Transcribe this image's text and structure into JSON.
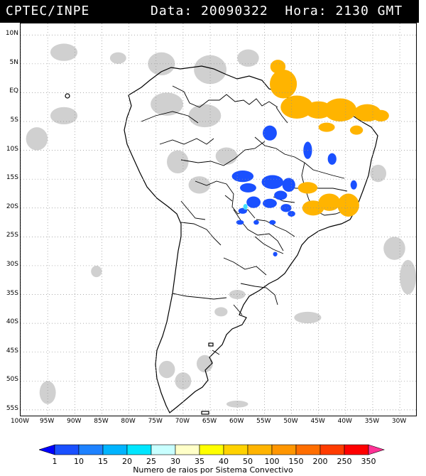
{
  "header": {
    "source": "CPTEC/INPE",
    "date_label": "Data:",
    "date_value": "20090322",
    "time_label": "Hora:",
    "time_value": "2130",
    "tz": "GMT"
  },
  "map": {
    "lat_range": [
      -56,
      12
    ],
    "lon_range": [
      -100,
      -27
    ],
    "lat_ticks": [
      {
        "value": 10,
        "label": "10N"
      },
      {
        "value": 5,
        "label": "5N"
      },
      {
        "value": 0,
        "label": "EQ"
      },
      {
        "value": -5,
        "label": "5S"
      },
      {
        "value": -10,
        "label": "10S"
      },
      {
        "value": -15,
        "label": "15S"
      },
      {
        "value": -20,
        "label": "20S"
      },
      {
        "value": -25,
        "label": "25S"
      },
      {
        "value": -30,
        "label": "30S"
      },
      {
        "value": -35,
        "label": "35S"
      },
      {
        "value": -40,
        "label": "40S"
      },
      {
        "value": -45,
        "label": "45S"
      },
      {
        "value": -50,
        "label": "50S"
      },
      {
        "value": -55,
        "label": "55S"
      }
    ],
    "lon_ticks": [
      {
        "value": -100,
        "label": "100W"
      },
      {
        "value": -95,
        "label": "95W"
      },
      {
        "value": -90,
        "label": "90W"
      },
      {
        "value": -85,
        "label": "85W"
      },
      {
        "value": -80,
        "label": "80W"
      },
      {
        "value": -75,
        "label": "75W"
      },
      {
        "value": -70,
        "label": "70W"
      },
      {
        "value": -65,
        "label": "65W"
      },
      {
        "value": -60,
        "label": "60W"
      },
      {
        "value": -55,
        "label": "55W"
      },
      {
        "value": -50,
        "label": "50W"
      },
      {
        "value": -45,
        "label": "45W"
      },
      {
        "value": -40,
        "label": "40W"
      },
      {
        "value": -35,
        "label": "35W"
      },
      {
        "value": -30,
        "label": "30W"
      }
    ],
    "grid": "dotted",
    "colors": {
      "land_outline": "#000000",
      "cloud": "#c8c8c8",
      "low": "#1a50ff",
      "mid": "#ffb400",
      "cyan": "#40e0ff"
    }
  },
  "convective_systems": [
    {
      "lon": -52.5,
      "lat": 4.5,
      "rx": 1.4,
      "ry": 1.2,
      "color": "#ffb400"
    },
    {
      "lon": -51.5,
      "lat": 1.5,
      "rx": 2.5,
      "ry": 2.5,
      "color": "#ffb400"
    },
    {
      "lon": -49,
      "lat": -2.5,
      "rx": 3,
      "ry": 2,
      "color": "#ffb400"
    },
    {
      "lon": -45,
      "lat": -3,
      "rx": 2.5,
      "ry": 1.5,
      "color": "#ffb400"
    },
    {
      "lon": -41,
      "lat": -3,
      "rx": 3,
      "ry": 2,
      "color": "#ffb400"
    },
    {
      "lon": -36,
      "lat": -3.5,
      "rx": 2.5,
      "ry": 1.5,
      "color": "#ffb400"
    },
    {
      "lon": -33.5,
      "lat": -4,
      "rx": 1.5,
      "ry": 1,
      "color": "#ffb400"
    },
    {
      "lon": -38,
      "lat": -6.5,
      "rx": 1.2,
      "ry": 0.8,
      "color": "#ffb400"
    },
    {
      "lon": -43.5,
      "lat": -6,
      "rx": 1.5,
      "ry": 0.8,
      "color": "#ffb400"
    },
    {
      "lon": -47,
      "lat": -16.5,
      "rx": 1.8,
      "ry": 1,
      "color": "#ffb400"
    },
    {
      "lon": -43,
      "lat": -19,
      "rx": 2,
      "ry": 1.5,
      "color": "#ffb400"
    },
    {
      "lon": -39.5,
      "lat": -19.5,
      "rx": 2,
      "ry": 2,
      "color": "#ffb400"
    },
    {
      "lon": -46,
      "lat": -20,
      "rx": 2,
      "ry": 1.3,
      "color": "#ffb400"
    },
    {
      "lon": -54,
      "lat": -7,
      "rx": 1.3,
      "ry": 1.3,
      "color": "#1a50ff"
    },
    {
      "lon": -47,
      "lat": -10,
      "rx": 0.8,
      "ry": 1.5,
      "color": "#1a50ff"
    },
    {
      "lon": -42.5,
      "lat": -11.5,
      "rx": 0.8,
      "ry": 1,
      "color": "#1a50ff"
    },
    {
      "lon": -59,
      "lat": -14.5,
      "rx": 2,
      "ry": 1,
      "color": "#1a50ff"
    },
    {
      "lon": -53.5,
      "lat": -15.5,
      "rx": 2,
      "ry": 1.2,
      "color": "#1a50ff"
    },
    {
      "lon": -58,
      "lat": -16.5,
      "rx": 1.5,
      "ry": 0.8,
      "color": "#1a50ff"
    },
    {
      "lon": -50.5,
      "lat": -16,
      "rx": 1.2,
      "ry": 1.2,
      "color": "#1a50ff"
    },
    {
      "lon": -52,
      "lat": -17.8,
      "rx": 1.2,
      "ry": 0.8,
      "color": "#1a50ff"
    },
    {
      "lon": -57,
      "lat": -19,
      "rx": 1.3,
      "ry": 1,
      "color": "#1a50ff"
    },
    {
      "lon": -54,
      "lat": -19.2,
      "rx": 1.3,
      "ry": 0.8,
      "color": "#1a50ff"
    },
    {
      "lon": -51,
      "lat": -20,
      "rx": 1,
      "ry": 0.7,
      "color": "#1a50ff"
    },
    {
      "lon": -59,
      "lat": -20.5,
      "rx": 0.8,
      "ry": 0.5,
      "color": "#1a50ff"
    },
    {
      "lon": -38.5,
      "lat": -16,
      "rx": 0.6,
      "ry": 0.8,
      "color": "#1a50ff"
    },
    {
      "lon": -50,
      "lat": -21,
      "rx": 0.7,
      "ry": 0.5,
      "color": "#1a50ff"
    },
    {
      "lon": -53.5,
      "lat": -22.5,
      "rx": 0.6,
      "ry": 0.4,
      "color": "#1a50ff"
    },
    {
      "lon": -59.5,
      "lat": -22.5,
      "rx": 0.7,
      "ry": 0.4,
      "color": "#1a50ff"
    },
    {
      "lon": -56.5,
      "lat": -22.5,
      "rx": 0.5,
      "ry": 0.4,
      "color": "#1a50ff"
    },
    {
      "lon": -53,
      "lat": -28,
      "rx": 0.4,
      "ry": 0.4,
      "color": "#1a50ff"
    },
    {
      "lon": -58.5,
      "lat": -19.8,
      "rx": 0.4,
      "ry": 0.5,
      "color": "#40e0ff"
    }
  ],
  "cloud_patches": [
    {
      "lon": -92,
      "lat": 7,
      "rx": 2.5,
      "ry": 1.5
    },
    {
      "lon": -82,
      "lat": 6,
      "rx": 1.5,
      "ry": 1
    },
    {
      "lon": -74,
      "lat": 5,
      "rx": 2.5,
      "ry": 2
    },
    {
      "lon": -65,
      "lat": 4,
      "rx": 3,
      "ry": 2.5
    },
    {
      "lon": -58,
      "lat": 6,
      "rx": 2,
      "ry": 1.5
    },
    {
      "lon": -92,
      "lat": -4,
      "rx": 2.5,
      "ry": 1.5
    },
    {
      "lon": -97,
      "lat": -8,
      "rx": 2,
      "ry": 2
    },
    {
      "lon": -73,
      "lat": -2,
      "rx": 3,
      "ry": 2
    },
    {
      "lon": -66,
      "lat": -4,
      "rx": 3,
      "ry": 2
    },
    {
      "lon": -71,
      "lat": -12,
      "rx": 2,
      "ry": 2
    },
    {
      "lon": -62,
      "lat": -11,
      "rx": 2,
      "ry": 1.5
    },
    {
      "lon": -67,
      "lat": -16,
      "rx": 2,
      "ry": 1.5
    },
    {
      "lon": -34,
      "lat": -14,
      "rx": 1.5,
      "ry": 1.5
    },
    {
      "lon": -31,
      "lat": -27,
      "rx": 2,
      "ry": 2
    },
    {
      "lon": -28.5,
      "lat": -32,
      "rx": 1.5,
      "ry": 3
    },
    {
      "lon": -47,
      "lat": -39,
      "rx": 2.5,
      "ry": 1
    },
    {
      "lon": -60,
      "lat": -35,
      "rx": 1.5,
      "ry": 0.8
    },
    {
      "lon": -63,
      "lat": -38,
      "rx": 1.2,
      "ry": 0.8
    },
    {
      "lon": -70,
      "lat": -50,
      "rx": 1.5,
      "ry": 1.5
    },
    {
      "lon": -73,
      "lat": -48,
      "rx": 1.5,
      "ry": 1.5
    },
    {
      "lon": -95,
      "lat": -52,
      "rx": 1.5,
      "ry": 2
    },
    {
      "lon": -86,
      "lat": -31,
      "rx": 1,
      "ry": 1
    },
    {
      "lon": -60,
      "lat": -54,
      "rx": 2,
      "ry": 0.6
    },
    {
      "lon": -66,
      "lat": -47,
      "rx": 1.5,
      "ry": 1.5
    }
  ],
  "legend": {
    "title": "Numero de raios por Sistema Convectivo",
    "labels": [
      "1",
      "10",
      "15",
      "20",
      "25",
      "30",
      "35",
      "40",
      "50",
      "100",
      "150",
      "200",
      "250",
      "350"
    ],
    "colors": [
      "#0000ff",
      "#1a50ff",
      "#1e82ff",
      "#00b4ff",
      "#00e6ff",
      "#c8ffff",
      "#ffffc8",
      "#ffff00",
      "#ffd200",
      "#ffb400",
      "#ff9600",
      "#ff6e00",
      "#ff3c00",
      "#ff0000",
      "#ff3296"
    ]
  }
}
